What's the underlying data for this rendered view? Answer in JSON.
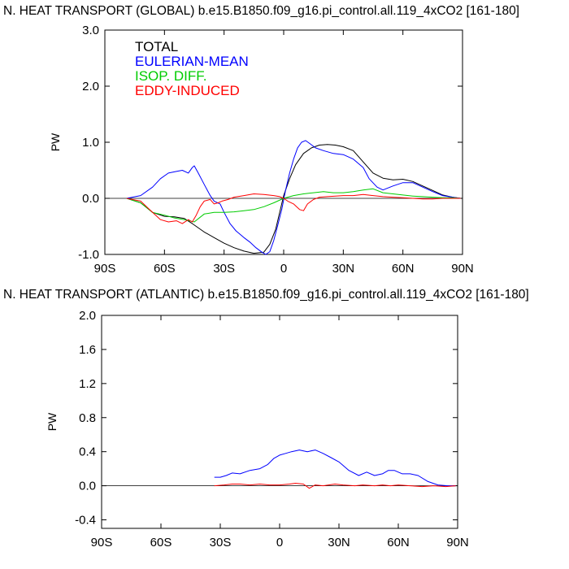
{
  "chart_data": [
    {
      "type": "line",
      "title": "N. HEAT TRANSPORT (GLOBAL) b.e15.B1850.f09_g16.pi_control.all.119_4xCO2 [161-180]",
      "xlabel": "",
      "ylabel": "PW",
      "xlim": [
        -90,
        90
      ],
      "ylim": [
        -1.0,
        3.0
      ],
      "xticks": [
        -90,
        -60,
        -30,
        0,
        30,
        60,
        90
      ],
      "xtick_labels": [
        "90S",
        "60S",
        "30S",
        "0",
        "30N",
        "60N",
        "90N"
      ],
      "yticks": [
        -1.0,
        0.0,
        1.0,
        2.0,
        3.0
      ],
      "ytick_labels": [
        "-1.0",
        "0.0",
        "1.0",
        "2.0",
        "3.0"
      ],
      "legend_position": "top-left",
      "zero_line": true,
      "series": [
        {
          "name": "TOTAL",
          "color": "#000000",
          "x": [
            -79,
            -72,
            -66,
            -60,
            -55,
            -50,
            -46,
            -40,
            -35,
            -30,
            -25,
            -20,
            -15,
            -10,
            -7,
            -4,
            -2,
            0,
            3,
            6,
            10,
            14,
            18,
            22,
            26,
            30,
            35,
            40,
            45,
            50,
            55,
            60,
            65,
            70,
            75,
            80,
            85,
            89
          ],
          "y": [
            0,
            -0.08,
            -0.25,
            -0.32,
            -0.33,
            -0.36,
            -0.45,
            -0.6,
            -0.7,
            -0.8,
            -0.88,
            -0.94,
            -0.98,
            -0.96,
            -0.82,
            -0.55,
            -0.25,
            0.05,
            0.35,
            0.6,
            0.8,
            0.9,
            0.95,
            0.96,
            0.95,
            0.92,
            0.85,
            0.65,
            0.45,
            0.36,
            0.33,
            0.34,
            0.3,
            0.22,
            0.14,
            0.06,
            0.02,
            0
          ]
        },
        {
          "name": "EULERIAN-MEAN",
          "color": "#0000ff",
          "x": [
            -79,
            -72,
            -66,
            -62,
            -58,
            -54,
            -51,
            -48,
            -46,
            -45,
            -43,
            -40,
            -37,
            -35,
            -32,
            -30,
            -27,
            -24,
            -20,
            -17,
            -14,
            -11,
            -9,
            -7,
            -5,
            -3,
            -1,
            1,
            3,
            5,
            7,
            9,
            11,
            13,
            16,
            20,
            25,
            30,
            35,
            40,
            43,
            47,
            50,
            55,
            60,
            65,
            70,
            75,
            80,
            85,
            89
          ],
          "y": [
            0,
            0.05,
            0.2,
            0.35,
            0.45,
            0.48,
            0.5,
            0.45,
            0.55,
            0.58,
            0.45,
            0.25,
            0.05,
            -0.05,
            -0.1,
            -0.25,
            -0.45,
            -0.58,
            -0.7,
            -0.78,
            -0.88,
            -0.96,
            -1.0,
            -0.95,
            -0.75,
            -0.48,
            -0.2,
            0.15,
            0.45,
            0.7,
            0.9,
            1.0,
            1.03,
            0.98,
            0.9,
            0.85,
            0.8,
            0.78,
            0.7,
            0.55,
            0.35,
            0.2,
            0.15,
            0.22,
            0.28,
            0.28,
            0.2,
            0.12,
            0.05,
            0.02,
            0
          ]
        },
        {
          "name": "ISOP. DIFF.",
          "color": "#00cc00",
          "x": [
            -79,
            -72,
            -66,
            -60,
            -55,
            -50,
            -45,
            -40,
            -35,
            -30,
            -25,
            -20,
            -15,
            -10,
            -5,
            0,
            5,
            10,
            15,
            20,
            25,
            30,
            35,
            40,
            45,
            50,
            55,
            60,
            65,
            70,
            75,
            80,
            85,
            89
          ],
          "y": [
            0,
            -0.08,
            -0.25,
            -0.3,
            -0.35,
            -0.38,
            -0.42,
            -0.28,
            -0.25,
            -0.25,
            -0.24,
            -0.22,
            -0.2,
            -0.15,
            -0.08,
            0,
            0.05,
            0.08,
            0.1,
            0.12,
            0.1,
            0.1,
            0.12,
            0.15,
            0.17,
            0.1,
            0.08,
            0.06,
            0.04,
            0.03,
            0.02,
            0.01,
            0.01,
            0
          ]
        },
        {
          "name": "EDDY-INDUCED",
          "color": "#ff0000",
          "x": [
            -79,
            -72,
            -66,
            -62,
            -58,
            -54,
            -51,
            -48,
            -46,
            -44,
            -42,
            -40,
            -37,
            -35,
            -33,
            -31,
            -28,
            -25,
            -20,
            -15,
            -10,
            -5,
            -2,
            0,
            2,
            5,
            8,
            10,
            12,
            15,
            18,
            22,
            26,
            30,
            35,
            40,
            45,
            50,
            55,
            60,
            65,
            70,
            75,
            80,
            85,
            89
          ],
          "y": [
            0,
            -0.05,
            -0.25,
            -0.38,
            -0.42,
            -0.4,
            -0.45,
            -0.38,
            -0.42,
            -0.3,
            -0.15,
            -0.05,
            -0.02,
            -0.1,
            -0.08,
            -0.05,
            -0.02,
            0.02,
            0.05,
            0.08,
            0.07,
            0.05,
            0.03,
            0,
            -0.05,
            -0.1,
            -0.2,
            -0.22,
            -0.1,
            -0.02,
            0.02,
            0.03,
            0.04,
            0.05,
            0.05,
            0.07,
            0.05,
            0.03,
            0.02,
            0.01,
            0,
            -0.01,
            -0.01,
            0,
            0,
            0
          ]
        }
      ]
    },
    {
      "type": "line",
      "title": "N. HEAT TRANSPORT (ATLANTIC) b.e15.B1850.f09_g16.pi_control.all.119_4xCO2 [161-180]",
      "xlabel": "",
      "ylabel": "PW",
      "xlim": [
        -90,
        90
      ],
      "ylim": [
        -0.5,
        2.0
      ],
      "xticks": [
        -90,
        -60,
        -30,
        0,
        30,
        60,
        90
      ],
      "xtick_labels": [
        "90S",
        "60S",
        "30S",
        "0",
        "30N",
        "60N",
        "90N"
      ],
      "yticks": [
        -0.4,
        0.0,
        0.4,
        0.8,
        1.2,
        1.6,
        2.0
      ],
      "ytick_labels": [
        "-0.4",
        "0.0",
        "0.4",
        "0.8",
        "1.2",
        "1.6",
        "2.0"
      ],
      "zero_line": true,
      "series": [
        {
          "color": "#0000ff",
          "x": [
            -33,
            -30,
            -27,
            -24,
            -20,
            -15,
            -10,
            -6,
            -3,
            0,
            3,
            6,
            10,
            14,
            18,
            22,
            26,
            30,
            35,
            40,
            44,
            48,
            52,
            55,
            58,
            62,
            66,
            70,
            75,
            80,
            85,
            89
          ],
          "y": [
            0.1,
            0.1,
            0.12,
            0.15,
            0.14,
            0.18,
            0.2,
            0.25,
            0.32,
            0.36,
            0.38,
            0.4,
            0.42,
            0.4,
            0.42,
            0.38,
            0.33,
            0.28,
            0.18,
            0.12,
            0.16,
            0.12,
            0.14,
            0.18,
            0.18,
            0.14,
            0.14,
            0.12,
            0.05,
            0.01,
            0,
            0
          ]
        },
        {
          "color": "#ff0000",
          "x": [
            -33,
            -28,
            -24,
            -20,
            -15,
            -10,
            -5,
            0,
            5,
            8,
            12,
            15,
            18,
            22,
            28,
            32,
            38,
            42,
            48,
            52,
            56,
            60,
            66,
            72,
            78,
            84,
            89
          ],
          "y": [
            0,
            0.01,
            0.02,
            0.02,
            0.01,
            0.02,
            0.01,
            0.01,
            0.02,
            0.03,
            0.02,
            -0.03,
            0.01,
            0,
            0.02,
            0.01,
            0,
            0.01,
            0,
            0.01,
            0,
            0.01,
            0,
            -0.01,
            0,
            -0.01,
            0
          ]
        }
      ]
    }
  ]
}
